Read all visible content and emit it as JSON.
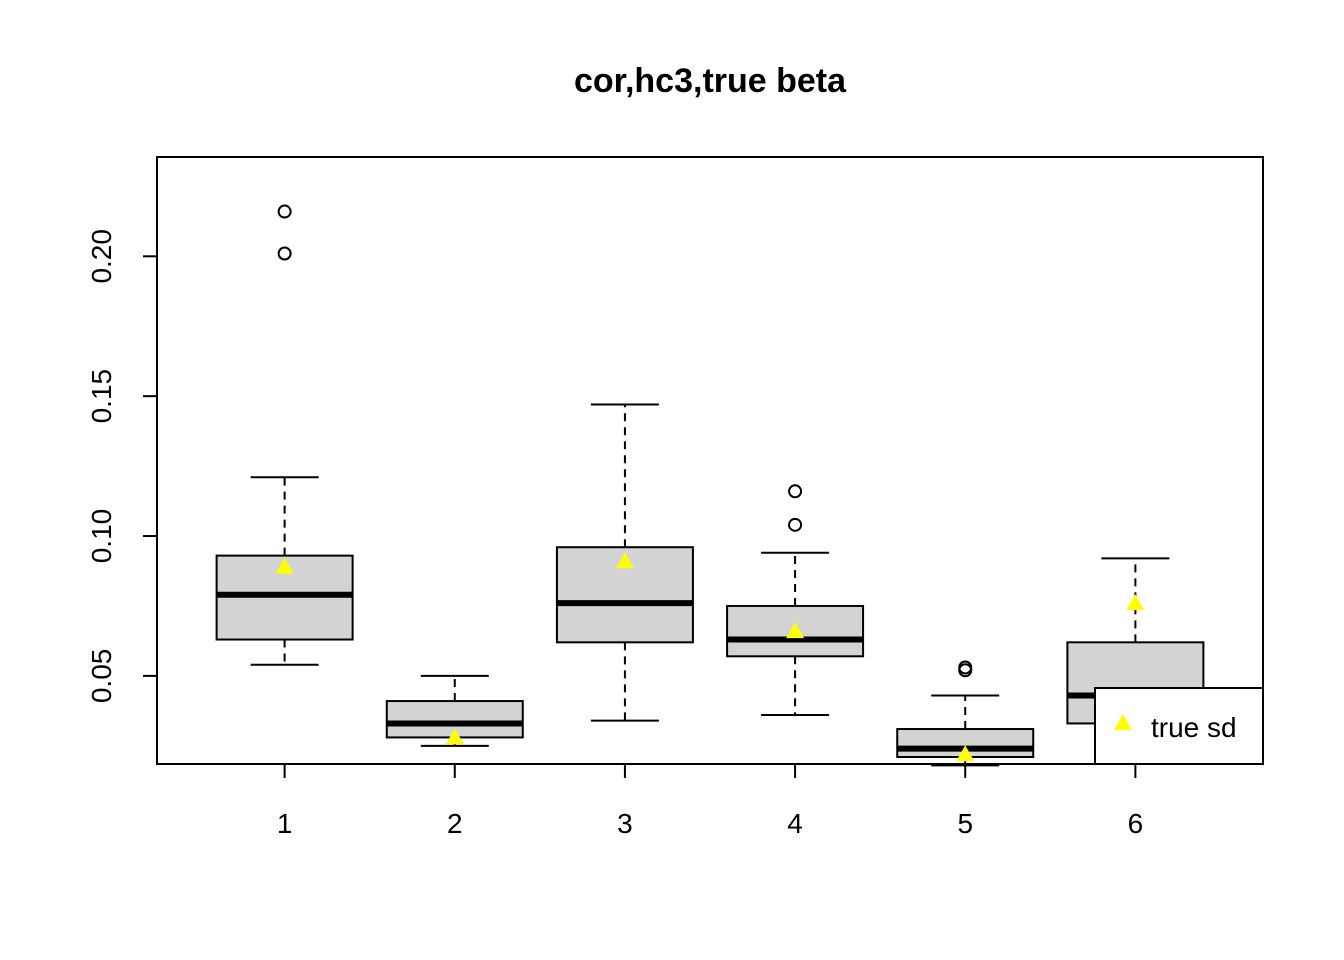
{
  "chart_data": {
    "type": "boxplot",
    "title": "cor,hc3,true beta",
    "xlabel": "",
    "ylabel": "",
    "ylim": [
      0.0185,
      0.2355
    ],
    "yticks": [
      0.05,
      0.1,
      0.15,
      0.2
    ],
    "ytick_labels": [
      "0.05",
      "0.10",
      "0.15",
      "0.20"
    ],
    "categories": [
      "1",
      "2",
      "3",
      "4",
      "5",
      "6"
    ],
    "boxes": [
      {
        "whisker_low": 0.054,
        "q1": 0.063,
        "median": 0.079,
        "q3": 0.093,
        "whisker_high": 0.121,
        "outliers": [
          0.201,
          0.216
        ]
      },
      {
        "whisker_low": 0.025,
        "q1": 0.028,
        "median": 0.033,
        "q3": 0.041,
        "whisker_high": 0.05,
        "outliers": []
      },
      {
        "whisker_low": 0.034,
        "q1": 0.062,
        "median": 0.076,
        "q3": 0.096,
        "whisker_high": 0.147,
        "outliers": []
      },
      {
        "whisker_low": 0.036,
        "q1": 0.057,
        "median": 0.063,
        "q3": 0.075,
        "whisker_high": 0.094,
        "outliers": [
          0.104,
          0.116
        ]
      },
      {
        "whisker_low": 0.018,
        "q1": 0.021,
        "median": 0.024,
        "q3": 0.031,
        "whisker_high": 0.043,
        "outliers": [
          0.052,
          0.053
        ]
      },
      {
        "whisker_low": 0.026,
        "q1": 0.033,
        "median": 0.043,
        "q3": 0.062,
        "whisker_high": 0.092,
        "outliers": []
      }
    ],
    "true_sd": [
      0.089,
      0.028,
      0.091,
      0.066,
      0.022,
      0.076
    ],
    "legend": {
      "position": "bottom-right",
      "label": "true sd"
    },
    "colors": {
      "box_fill": "#d3d3d3",
      "marker": "#ffff00",
      "line": "#000000"
    },
    "grid": false
  }
}
